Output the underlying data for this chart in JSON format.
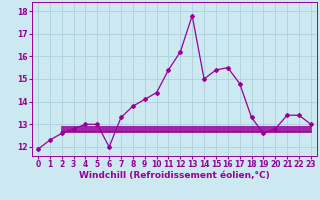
{
  "xlabel": "Windchill (Refroidissement éolien,°C)",
  "bg_color": "#cce8f0",
  "line_color": "#990099",
  "x_values": [
    0,
    1,
    2,
    3,
    4,
    5,
    6,
    7,
    8,
    9,
    10,
    11,
    12,
    13,
    14,
    15,
    16,
    17,
    18,
    19,
    20,
    21,
    22,
    23
  ],
  "y_main": [
    11.9,
    12.3,
    12.6,
    12.8,
    13.0,
    13.0,
    12.0,
    13.3,
    13.8,
    14.1,
    14.4,
    15.4,
    16.2,
    17.8,
    15.0,
    15.4,
    15.5,
    14.8,
    13.3,
    12.6,
    12.8,
    13.4,
    13.4,
    13.0
  ],
  "flat_lines": [
    {
      "x_start": 2,
      "x_end": 23,
      "y": 12.65
    },
    {
      "x_start": 2,
      "x_end": 23,
      "y": 12.72
    },
    {
      "x_start": 2,
      "x_end": 23,
      "y": 12.8
    },
    {
      "x_start": 2,
      "x_end": 23,
      "y": 12.9
    }
  ],
  "ylim": [
    11.6,
    18.4
  ],
  "yticks": [
    12,
    13,
    14,
    15,
    16,
    17,
    18
  ],
  "xticks": [
    0,
    1,
    2,
    3,
    4,
    5,
    6,
    7,
    8,
    9,
    10,
    11,
    12,
    13,
    14,
    15,
    16,
    17,
    18,
    19,
    20,
    21,
    22,
    23
  ],
  "grid_color": "#a8ccd8",
  "tick_label_color": "#990099",
  "tick_label_size": 5.5,
  "xlabel_size": 6.5,
  "marker": "D",
  "marker_size": 2.0,
  "linewidth": 0.9,
  "flat_linewidth": 1.2
}
